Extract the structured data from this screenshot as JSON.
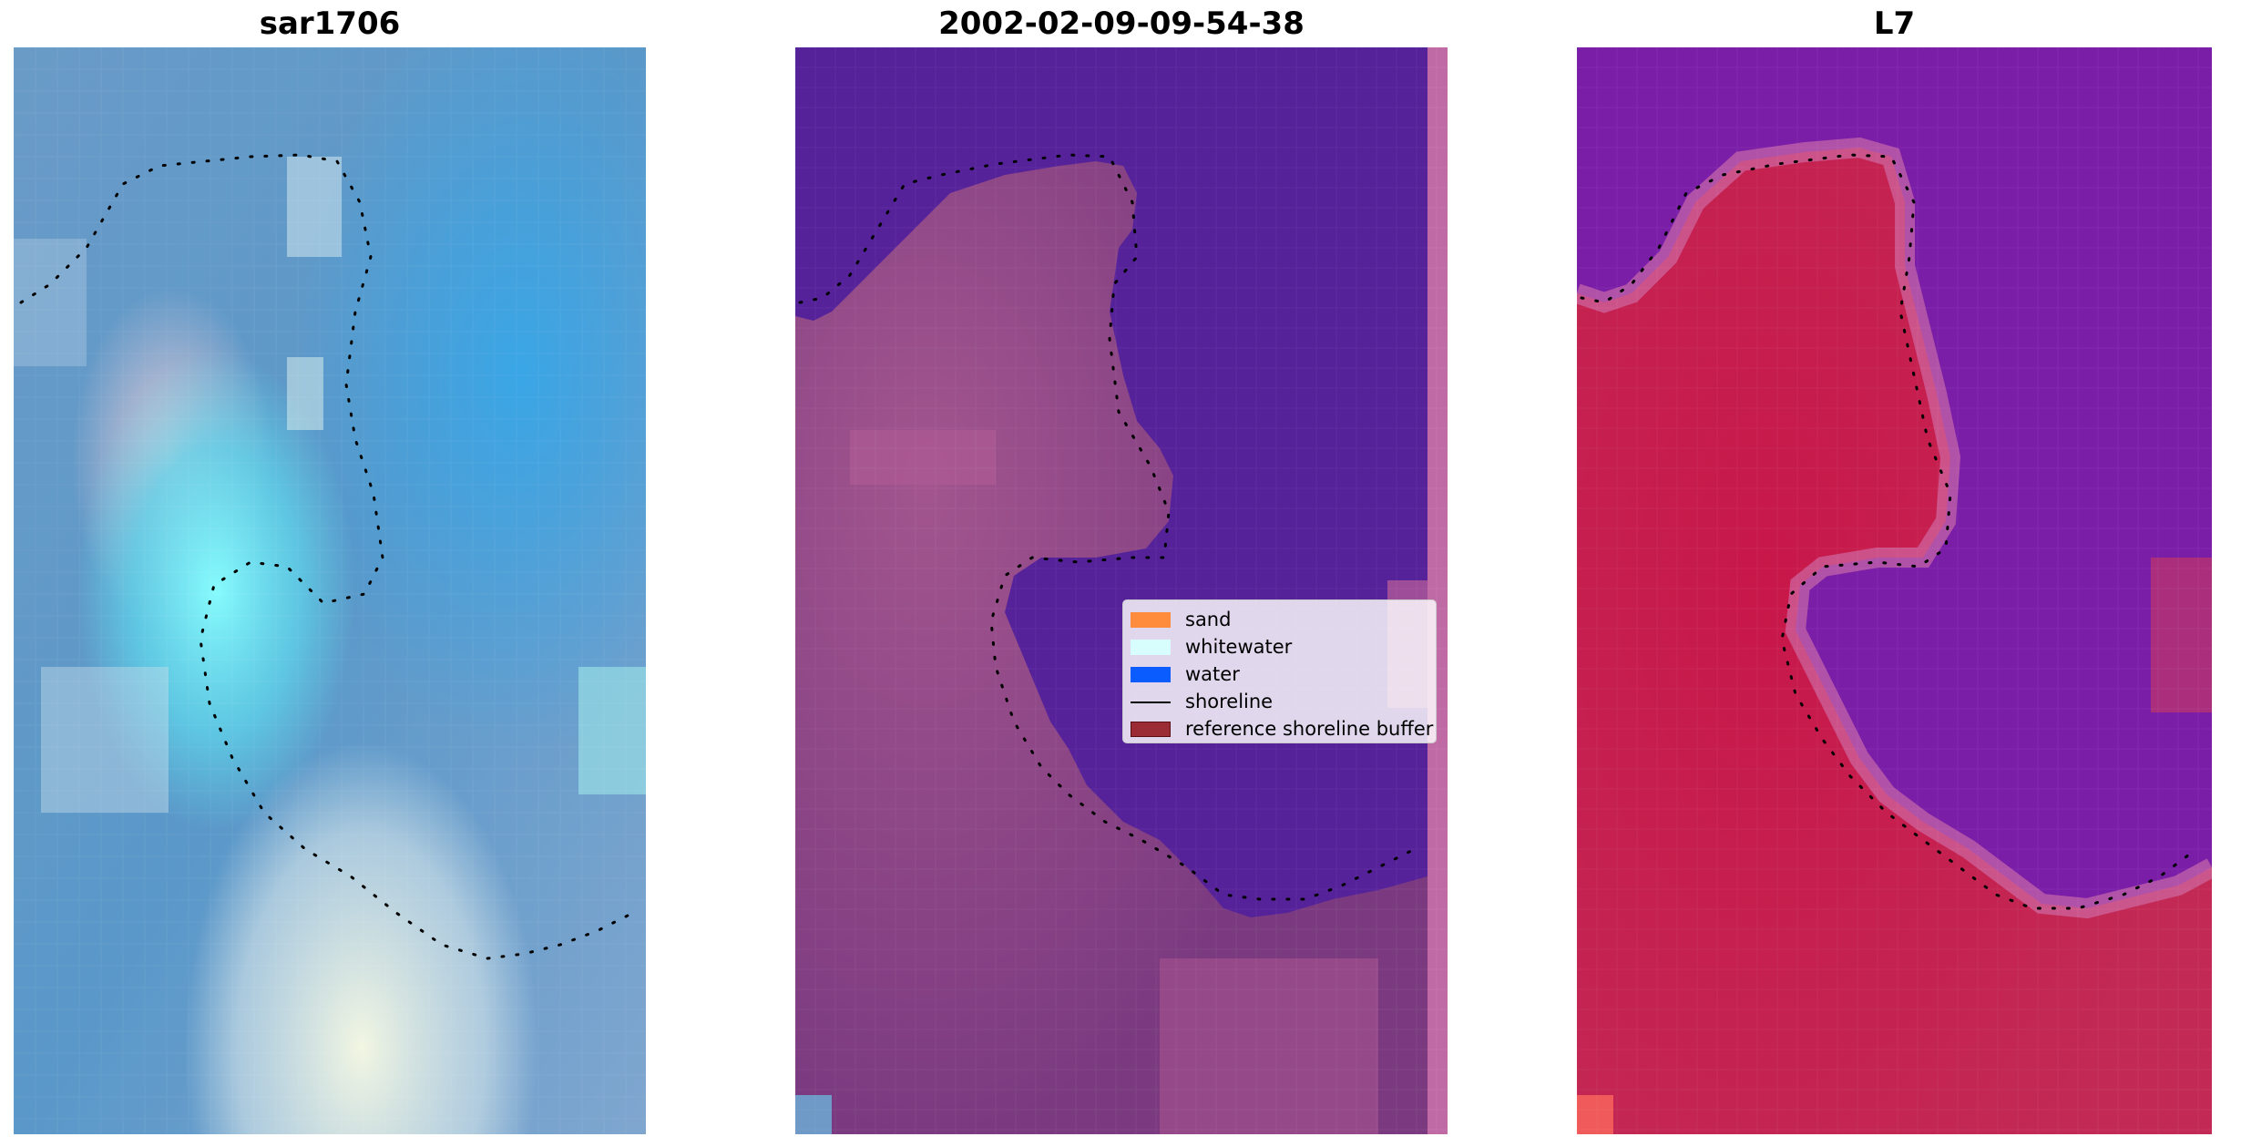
{
  "panels": [
    {
      "title": "sar1706"
    },
    {
      "title": "2002-02-09-09-54-38"
    },
    {
      "title": "L7"
    }
  ],
  "legend": {
    "items": [
      {
        "label": "sand",
        "color": "#ff8c3c"
      },
      {
        "label": "whitewater",
        "color": "#d7fdfd"
      },
      {
        "label": "water",
        "color": "#0a5cff"
      },
      {
        "label": "shoreline",
        "color": "#000000"
      },
      {
        "label": "reference shoreline buffer",
        "color": "#9b2c35"
      }
    ]
  },
  "colors": {
    "left_base": "#5e95c6",
    "left_bright": "#7ff6fb",
    "mid_water": "#55229a",
    "mid_land": "#7e3c80",
    "right_water": "#7a1ea8",
    "right_land": "#c2244f"
  }
}
